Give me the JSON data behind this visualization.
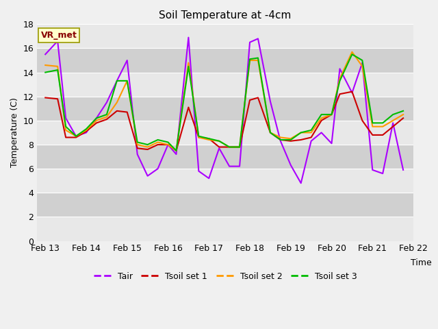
{
  "title": "Soil Temperature at -4cm",
  "xlabel": "Time",
  "ylabel": "Temperature (C)",
  "ylim": [
    0,
    18
  ],
  "yticks": [
    0,
    2,
    4,
    6,
    8,
    10,
    12,
    14,
    16,
    18
  ],
  "annotation": "VR_met",
  "series": {
    "Tair": {
      "color": "#aa00ff",
      "linewidth": 1.5,
      "x": [
        0.0,
        0.3,
        0.5,
        0.75,
        1.0,
        1.25,
        1.5,
        1.75,
        2.0,
        2.25,
        2.5,
        2.75,
        3.0,
        3.2,
        3.5,
        3.75,
        4.0,
        4.25,
        4.5,
        4.75,
        5.0,
        5.2,
        5.5,
        5.75,
        6.0,
        6.25,
        6.5,
        6.75,
        7.0,
        7.2,
        7.5,
        7.75,
        8.0,
        8.25,
        8.5,
        8.75
      ],
      "y": [
        15.5,
        16.6,
        10.2,
        8.7,
        9.0,
        10.2,
        11.5,
        13.3,
        15.0,
        7.2,
        5.4,
        6.0,
        8.0,
        7.2,
        16.9,
        5.8,
        5.2,
        7.7,
        6.2,
        6.2,
        16.5,
        16.8,
        11.6,
        8.3,
        6.3,
        4.8,
        8.3,
        9.0,
        8.1,
        14.3,
        12.3,
        14.8,
        5.9,
        5.6,
        9.8,
        5.9
      ]
    },
    "Tsoil set 1": {
      "color": "#cc0000",
      "linewidth": 1.5,
      "x": [
        0.0,
        0.3,
        0.5,
        0.75,
        1.0,
        1.25,
        1.5,
        1.75,
        2.0,
        2.25,
        2.5,
        2.75,
        3.0,
        3.2,
        3.5,
        3.75,
        4.0,
        4.25,
        4.5,
        4.75,
        5.0,
        5.2,
        5.5,
        5.75,
        6.0,
        6.25,
        6.5,
        6.75,
        7.0,
        7.2,
        7.5,
        7.75,
        8.0,
        8.25,
        8.5,
        8.75
      ],
      "y": [
        11.9,
        11.8,
        8.6,
        8.6,
        9.1,
        9.8,
        10.1,
        10.8,
        10.7,
        7.7,
        7.6,
        8.0,
        8.0,
        7.5,
        11.1,
        8.6,
        8.5,
        7.8,
        7.8,
        7.8,
        11.7,
        11.9,
        9.0,
        8.4,
        8.3,
        8.4,
        8.6,
        10.0,
        10.5,
        12.2,
        12.4,
        10.0,
        8.8,
        8.8,
        9.5,
        10.2
      ]
    },
    "Tsoil set 2": {
      "color": "#ff9900",
      "linewidth": 1.5,
      "x": [
        0.0,
        0.3,
        0.5,
        0.75,
        1.0,
        1.25,
        1.5,
        1.75,
        2.0,
        2.25,
        2.5,
        2.75,
        3.0,
        3.2,
        3.5,
        3.75,
        4.0,
        4.25,
        4.5,
        4.75,
        5.0,
        5.2,
        5.5,
        5.75,
        6.0,
        6.25,
        6.5,
        6.75,
        7.0,
        7.2,
        7.5,
        7.75,
        8.0,
        8.25,
        8.5,
        8.75
      ],
      "y": [
        14.6,
        14.5,
        9.2,
        8.7,
        9.2,
        10.0,
        10.3,
        11.5,
        13.3,
        8.0,
        7.8,
        8.2,
        8.0,
        7.5,
        14.8,
        8.6,
        8.4,
        8.3,
        7.8,
        7.8,
        15.0,
        15.0,
        9.0,
        8.6,
        8.5,
        9.0,
        9.0,
        10.2,
        10.5,
        13.5,
        15.7,
        14.5,
        9.5,
        9.5,
        10.0,
        10.5
      ]
    },
    "Tsoil set 3": {
      "color": "#00bb00",
      "linewidth": 1.5,
      "x": [
        0.0,
        0.3,
        0.5,
        0.75,
        1.0,
        1.25,
        1.5,
        1.75,
        2.0,
        2.25,
        2.5,
        2.75,
        3.0,
        3.2,
        3.5,
        3.75,
        4.0,
        4.25,
        4.5,
        4.75,
        5.0,
        5.2,
        5.5,
        5.75,
        6.0,
        6.25,
        6.5,
        6.75,
        7.0,
        7.2,
        7.5,
        7.75,
        8.0,
        8.25,
        8.5,
        8.75
      ],
      "y": [
        14.0,
        14.2,
        9.5,
        8.7,
        9.3,
        10.2,
        10.5,
        13.3,
        13.3,
        8.2,
        8.0,
        8.4,
        8.2,
        7.5,
        14.5,
        8.7,
        8.5,
        8.3,
        7.8,
        7.8,
        15.1,
        15.2,
        9.0,
        8.4,
        8.4,
        9.0,
        9.2,
        10.5,
        10.5,
        13.3,
        15.5,
        15.0,
        9.8,
        9.8,
        10.5,
        10.8
      ]
    }
  },
  "xtick_positions": [
    0,
    1,
    2,
    3,
    4,
    5,
    6,
    7,
    8,
    9
  ],
  "xtick_labels": [
    "Feb 13",
    "Feb 14",
    "Feb 15",
    "Feb 16",
    "Feb 17",
    "Feb 18",
    "Feb 19",
    "Feb 20",
    "Feb 21",
    "Feb 22"
  ],
  "legend_order": [
    "Tair",
    "Tsoil set 1",
    "Tsoil set 2",
    "Tsoil set 3"
  ],
  "band_colors": [
    "#e8e8e8",
    "#d0d0d0"
  ],
  "figure_facecolor": "#f0f0f0",
  "axes_facecolor": "#e0e0e0"
}
